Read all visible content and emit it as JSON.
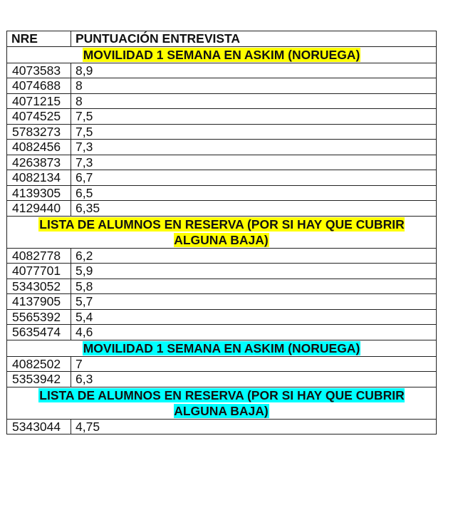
{
  "header": {
    "col_nre": "NRE",
    "col_score": "PUNTUACIÓN ENTREVISTA"
  },
  "colors": {
    "yellow_highlight": "#ffff00",
    "cyan_highlight": "#00ffff"
  },
  "sections": [
    {
      "title": "MOVILIDAD 1 SEMANA EN ASKIM (NORUEGA)",
      "highlight": "#ffff00",
      "rows": [
        {
          "nre": "4073583",
          "score": "8,9"
        },
        {
          "nre": "4074688",
          "score": "8"
        },
        {
          "nre": "4071215",
          "score": "8"
        },
        {
          "nre": "4074525",
          "score": "7,5"
        },
        {
          "nre": "5783273",
          "score": "7,5"
        },
        {
          "nre": "4082456",
          "score": "7,3"
        },
        {
          "nre": "4263873",
          "score": "7,3"
        },
        {
          "nre": "4082134",
          "score": "6,7"
        },
        {
          "nre": "4139305",
          "score": "6,5"
        },
        {
          "nre": "4129440",
          "score": "6,35"
        }
      ]
    },
    {
      "title": "LISTA DE ALUMNOS EN RESERVA (POR SI HAY QUE CUBRIR ALGUNA BAJA)",
      "highlight": "#ffff00",
      "rows": [
        {
          "nre": "4082778",
          "score": "6,2"
        },
        {
          "nre": "4077701",
          "score": "5,9"
        },
        {
          "nre": "5343052",
          "score": "5,8"
        },
        {
          "nre": "4137905",
          "score": "5,7"
        },
        {
          "nre": "5565392",
          "score": "5,4"
        },
        {
          "nre": "5635474",
          "score": "4,6"
        }
      ]
    },
    {
      "title": "MOVILIDAD 1 SEMANA EN ASKIM (NORUEGA)",
      "highlight": "#00ffff",
      "rows": [
        {
          "nre": "4082502",
          "score": "7"
        },
        {
          "nre": "5353942",
          "score": "6,3"
        }
      ]
    },
    {
      "title": "LISTA DE ALUMNOS EN RESERVA (POR SI HAY QUE CUBRIR ALGUNA BAJA)",
      "highlight": "#00ffff",
      "rows": [
        {
          "nre": "5343044",
          "score": "4,75"
        }
      ]
    }
  ]
}
